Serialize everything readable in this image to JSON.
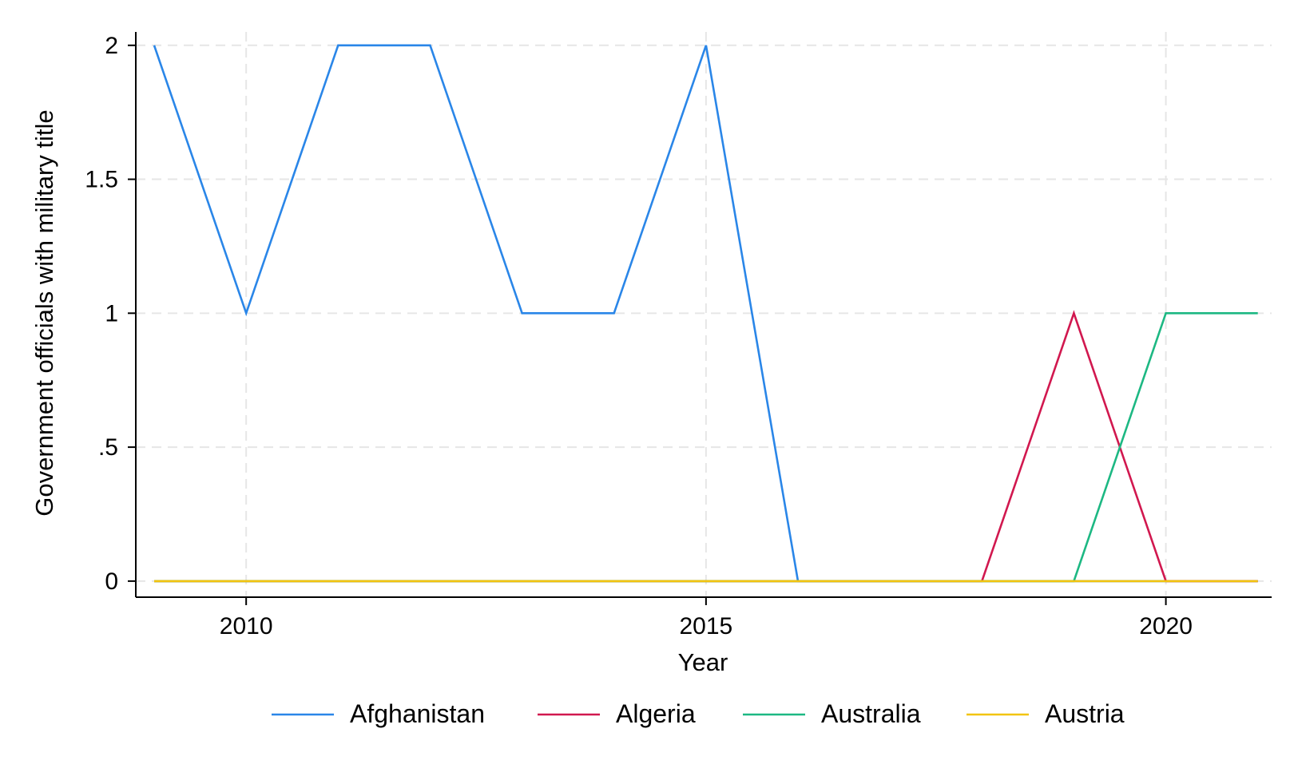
{
  "chart_data": {
    "type": "line",
    "title": "",
    "xlabel": "Year",
    "ylabel": "Government officials with military title",
    "x": [
      2009,
      2010,
      2011,
      2012,
      2013,
      2014,
      2015,
      2016,
      2017,
      2018,
      2019,
      2020,
      2021
    ],
    "xlim": [
      2008.8,
      2021.15
    ],
    "ylim": [
      -0.06,
      2.05
    ],
    "xticks": [
      2010,
      2015,
      2020
    ],
    "xtick_labels": [
      "2010",
      "2015",
      "2020"
    ],
    "yticks": [
      0,
      0.5,
      1,
      1.5,
      2
    ],
    "ytick_labels": [
      "0",
      ".5",
      "1",
      "1.5",
      "2"
    ],
    "grid": true,
    "legend_position": "bottom",
    "series": [
      {
        "name": "Afghanistan",
        "color": "#2a86e8",
        "values": [
          2,
          1,
          2,
          2,
          1,
          1,
          2,
          0,
          0,
          0,
          0,
          0,
          0
        ]
      },
      {
        "name": "Algeria",
        "color": "#d1184f",
        "values": [
          0,
          0,
          0,
          0,
          0,
          0,
          0,
          0,
          0,
          0,
          1,
          0,
          0
        ]
      },
      {
        "name": "Australia",
        "color": "#1db883",
        "values": [
          0,
          0,
          0,
          0,
          0,
          0,
          0,
          0,
          0,
          0,
          0,
          1,
          1
        ]
      },
      {
        "name": "Austria",
        "color": "#f2c40f",
        "values": [
          0,
          0,
          0,
          0,
          0,
          0,
          0,
          0,
          0,
          0,
          0,
          0,
          0
        ]
      }
    ]
  }
}
